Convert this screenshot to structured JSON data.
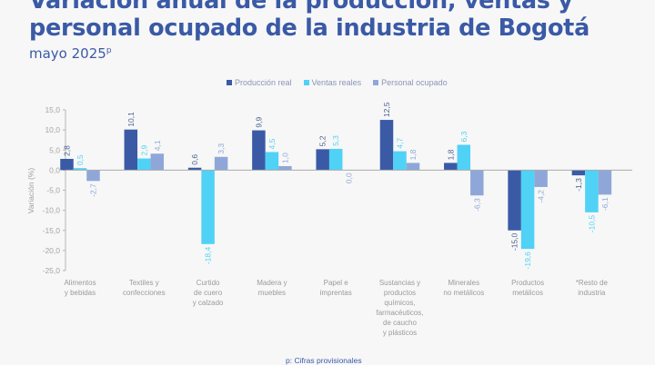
{
  "title": "Variación anual de la producción, ventas y personal ocupado de la industria de Bogotá",
  "subtitle": "mayo 2025",
  "subtitle_sup": "p",
  "footnote": "p: Cifras provisionales",
  "chart_data": {
    "type": "bar",
    "title": "Variación anual de la producción, ventas y personal ocupado de la industria de Bogotá",
    "subtitle": "mayo 2025p",
    "xlabel": "",
    "ylabel": "Variación (%)",
    "ylim": [
      -25,
      15
    ],
    "yticks": [
      15,
      10,
      5,
      0,
      -5,
      -10,
      -15,
      -20,
      -25
    ],
    "ytick_labels": [
      "15,0",
      "10,0",
      "5,0",
      "0,0",
      "-5,0",
      "-10,0",
      "-15,0",
      "-20,0",
      "-25,0"
    ],
    "grid": false,
    "legend_position": "top",
    "categories": [
      "Alimentos\ny bebidas",
      "Textiles y\nconfecciones",
      "Curtido\nde cuero\ny calzado",
      "Madera y\nmuebles",
      "Papel e\nimprentas",
      "Sustancias y\nproductos\nquímicos,\nfarmacéuticos,\nde caucho\ny plásticos",
      "Minerales\nno metálicos",
      "Productos\nmetálicos",
      "*Resto de\nindustria"
    ],
    "series": [
      {
        "name": "Producción real",
        "color": "#3a5aa6",
        "values": [
          2.8,
          10.1,
          0.6,
          9.9,
          5.2,
          12.5,
          1.8,
          -15.0,
          -1.3
        ],
        "labels": [
          "2,8",
          "10,1",
          "0,6",
          "9,9",
          "5,2",
          "12,5",
          "1,8",
          "-15,0",
          "-1,3"
        ]
      },
      {
        "name": "Ventas reales",
        "color": "#4fd2f5",
        "values": [
          0.5,
          2.9,
          -18.4,
          4.5,
          5.3,
          4.7,
          6.3,
          -19.6,
          -10.5
        ],
        "labels": [
          "0,5",
          "2,9",
          "-18,4",
          "4,5",
          "5,3",
          "4,7",
          "6,3",
          "-19,6",
          "-10,5"
        ]
      },
      {
        "name": "Personal ocupado",
        "color": "#8fa7d8",
        "values": [
          -2.7,
          4.1,
          3.3,
          1.0,
          0.0,
          1.8,
          -6.3,
          -4.2,
          -6.1
        ],
        "labels": [
          "-2,7",
          "4,1",
          "3,3",
          "1,0",
          "0,0",
          "1,8",
          "-6,3",
          "-4,2",
          "-6,1"
        ]
      }
    ]
  }
}
